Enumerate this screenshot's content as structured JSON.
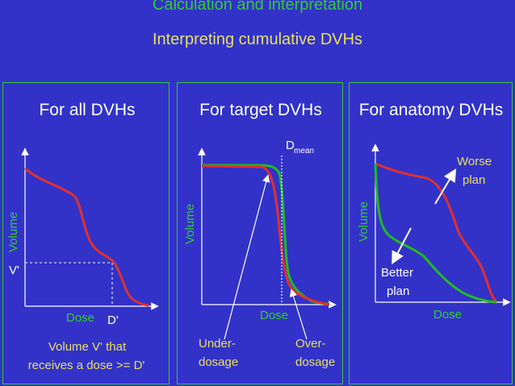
{
  "header": {
    "title": "Calculation and interpretation",
    "subtitle": "Interpreting cumulative DVHs"
  },
  "panels": [
    {
      "title": "For all DVHs",
      "y_axis_label": "Volume",
      "x_axis_label": "Dose",
      "v_marker": "V'",
      "d_marker": "D'",
      "caption_line1": "Volume V' that",
      "caption_line2": "receives a dose >= D'"
    },
    {
      "title": "For target DVHs",
      "y_axis_label": "Volume",
      "x_axis_label": "Dose",
      "dmean_main": "D",
      "dmean_sub": "mean",
      "under_line1": "Under-",
      "under_line2": "dosage",
      "over_line1": "Over-",
      "over_line2": "dosage"
    },
    {
      "title": "For anatomy DVHs",
      "y_axis_label": "Volume",
      "x_axis_label": "Dose",
      "worse_line1": "Worse",
      "worse_line2": "plan",
      "better_line1": "Better",
      "better_line2": "plan"
    }
  ],
  "colors": {
    "background": "#3232c8",
    "panel_border": "#33cc33",
    "title_green": "#33cc33",
    "subtitle_yellow": "#e8e060",
    "curve_red": "#e03030",
    "curve_green": "#22bb22"
  }
}
